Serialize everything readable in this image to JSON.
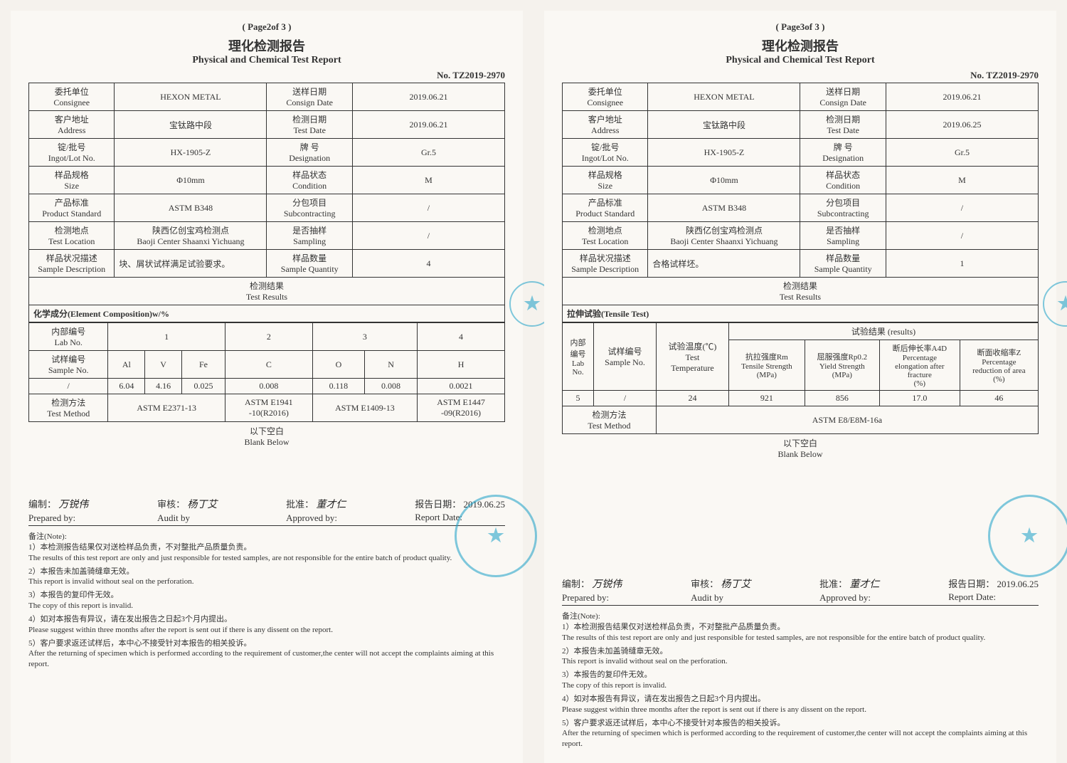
{
  "page2": {
    "pageNum": "( Page2of 3 )",
    "titleCn": "理化检测报告",
    "titleEn": "Physical and Chemical Test Report",
    "reportNo": "No.  TZ2019-2970",
    "header": {
      "consignee": {
        "l": "委托单位\nConsignee",
        "v": "HEXON METAL"
      },
      "consignDate": {
        "l": "送样日期\nConsign Date",
        "v": "2019.06.21"
      },
      "address": {
        "l": "客户地址\nAddress",
        "v": "宝钛路中段"
      },
      "testDate": {
        "l": "检测日期\nTest Date",
        "v": "2019.06.21"
      },
      "lot": {
        "l": "锭/批号\nIngot/Lot No.",
        "v": "HX-1905-Z"
      },
      "designation": {
        "l": "牌 号\nDesignation",
        "v": "Gr.5"
      },
      "size": {
        "l": "样品规格\nSize",
        "v": "Φ10mm"
      },
      "condition": {
        "l": "样品状态\nCondition",
        "v": "M"
      },
      "std": {
        "l": "产品标准\nProduct Standard",
        "v": "ASTM B348"
      },
      "subcontract": {
        "l": "分包项目\nSubcontracting",
        "v": "/"
      },
      "location": {
        "l": "检测地点\nTest Location",
        "v": "陕西亿创宝鸡检测点\nBaoji Center Shaanxi Yichuang"
      },
      "sampling": {
        "l": "是否抽样\nSampling",
        "v": "/"
      },
      "desc": {
        "l": "样品状况描述\nSample Description",
        "v": "块、屑状试样满足试验要求。"
      },
      "qty": {
        "l": "样品数量\nSample Quantity",
        "v": "4"
      }
    },
    "testResultsLabel": "检测结果\nTest Results",
    "compLabel": "化学成分(Element Composition)w/%",
    "labNo": {
      "l": "内部编号\nLab No.",
      "c": [
        "1",
        "2",
        "3",
        "4"
      ]
    },
    "sampleNo": {
      "l": "试样编号\nSample No.",
      "c": [
        "Al",
        "V",
        "Fe",
        "C",
        "O",
        "N",
        "H"
      ]
    },
    "row": {
      "l": "/",
      "c": [
        "6.04",
        "4.16",
        "0.025",
        "0.008",
        "0.118",
        "0.008",
        "0.0021"
      ]
    },
    "method": {
      "l": "检测方法\nTest Method",
      "c": [
        "ASTM E2371-13",
        "ASTM E1941\n-10(R2016)",
        "ASTM E1409-13",
        "ASTM E1447\n-09(R2016)"
      ]
    },
    "blankCn": "以下空白",
    "blankEn": "Blank Below",
    "sig": {
      "prep": {
        "cn": "编制：",
        "en": "Prepared by:",
        "v": "万锐伟"
      },
      "audit": {
        "cn": "审核：",
        "en": "Audit by",
        "v": "杨丁艾"
      },
      "approve": {
        "cn": "批准：",
        "en": "Approved by:",
        "v": "董才仁"
      },
      "date": {
        "cn": "报告日期：",
        "en": "Report Date:",
        "v": "2019.06.25"
      }
    }
  },
  "page3": {
    "pageNum": "( Page3of 3 )",
    "titleCn": "理化检测报告",
    "titleEn": "Physical and Chemical Test Report",
    "reportNo": "No.  TZ2019-2970",
    "header": {
      "consignee": {
        "l": "委托单位\nConsignee",
        "v": "HEXON METAL"
      },
      "consignDate": {
        "l": "送样日期\nConsign Date",
        "v": "2019.06.21"
      },
      "address": {
        "l": "客户地址\nAddress",
        "v": "宝钛路中段"
      },
      "testDate": {
        "l": "检测日期\nTest Date",
        "v": "2019.06.25"
      },
      "lot": {
        "l": "锭/批号\nIngot/Lot No.",
        "v": "HX-1905-Z"
      },
      "designation": {
        "l": "牌 号\nDesignation",
        "v": "Gr.5"
      },
      "size": {
        "l": "样品规格\nSize",
        "v": "Φ10mm"
      },
      "condition": {
        "l": "样品状态\nCondition",
        "v": "M"
      },
      "std": {
        "l": "产品标准\nProduct Standard",
        "v": "ASTM B348"
      },
      "subcontract": {
        "l": "分包项目\nSubcontracting",
        "v": "/"
      },
      "location": {
        "l": "检测地点\nTest Location",
        "v": "陕西亿创宝鸡检测点\nBaoji Center Shaanxi Yichuang"
      },
      "sampling": {
        "l": "是否抽样\nSampling",
        "v": "/"
      },
      "desc": {
        "l": "样品状况描述\nSample Description",
        "v": "合格试样坯。"
      },
      "qty": {
        "l": "样品数量\nSample Quantity",
        "v": "1"
      }
    },
    "testResultsLabel": "检测结果\nTest Results",
    "tensileLabel": "拉伸试验(Tensile Test)",
    "resultsLabel": "试验结果 (results)",
    "cols": {
      "labNo": "内部\n编号\nLab\nNo.",
      "sampleNo": "试样编号\nSample No.",
      "temp": "试验温度(℃)\nTest\nTemperature",
      "tensile": "抗拉强度Rm\nTensile Strength\n(MPa)",
      "yield": "屈服强度Rp0.2\nYield Strength\n(MPa)",
      "elong": "断后伸长率A4D\nPercentage\nelongation after\nfracture\n(%)",
      "reduct": "断面收缩率Z\nPercentage\nreduction of area\n(%)"
    },
    "row": {
      "labNo": "5",
      "sampleNo": "/",
      "temp": "24",
      "tensile": "921",
      "yield": "856",
      "elong": "17.0",
      "reduct": "46"
    },
    "method": {
      "l": "检测方法\nTest Method",
      "v": "ASTM E8/E8M-16a"
    },
    "blankCn": "以下空白",
    "blankEn": "Blank Below",
    "sig": {
      "prep": {
        "cn": "编制：",
        "en": "Prepared by:",
        "v": "万锐伟"
      },
      "audit": {
        "cn": "审核：",
        "en": "Audit by",
        "v": "杨丁艾"
      },
      "approve": {
        "cn": "批准：",
        "en": "Approved by:",
        "v": "董才仁"
      },
      "date": {
        "cn": "报告日期：",
        "en": "Report Date:",
        "v": "2019.06.25"
      }
    }
  },
  "notes": {
    "head": "备注(Note):",
    "n1cn": "1）本检测报告结果仅对送检样品负责，不对整批产品质量负责。",
    "n1en": "The results of this test report are only and just responsible for tested samples, are not responsible for the entire batch of product quality.",
    "n2cn": "2）本报告未加盖骑缝章无效。",
    "n2en": "This report is invalid without seal on the perforation.",
    "n3cn": "3）本报告的复印件无效。",
    "n3en": "The copy of this report is invalid.",
    "n4cn": "4）如对本报告有异议，请在发出报告之日起3个月内提出。",
    "n4en": "Please suggest within three months after the report is sent out if there is any dissent on the report.",
    "n5cn": "5）客户要求返还试样后，本中心不接受针对本报告的相关投诉。",
    "n5en": "After the returning of specimen which is performed according to the requirement of customer,the center will not accept the complaints aiming at this report."
  }
}
